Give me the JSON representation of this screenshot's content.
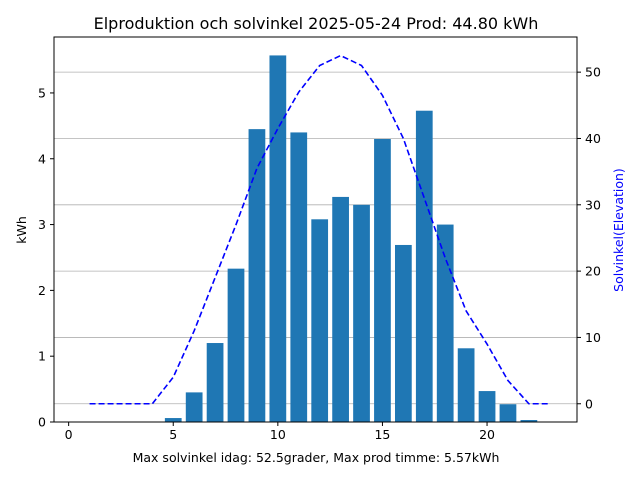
{
  "chart_data": {
    "type": "bar",
    "title": "Elproduktion och solvinkel 2025-05-24 Prod: 44.80 kWh",
    "xlabel": "Max solvinkel idag: 52.5grader, Max prod timme: 5.57kWh",
    "ylabel_left": "kWh",
    "ylabel_right": "Solvinkel(Elevation)",
    "xlim": [
      -0.7,
      24.3
    ],
    "ylim_left": [
      0,
      5.85
    ],
    "ylim_right": [
      -2.75,
      55.3
    ],
    "xticks": [
      0,
      5,
      10,
      15,
      20
    ],
    "yticks_left": [
      0,
      1,
      2,
      3,
      4,
      5
    ],
    "yticks_right": [
      0,
      10,
      20,
      30,
      40,
      50
    ],
    "grid": "horizontal lines at right-axis ticks",
    "colors": {
      "bars": "#1f77b4",
      "line": "#0000ff",
      "right_axis_label": "#0000ff"
    },
    "series": [
      {
        "kind": "bar",
        "axis": "left",
        "x": [
          1,
          2,
          3,
          4,
          5,
          6,
          7,
          8,
          9,
          10,
          11,
          12,
          13,
          14,
          15,
          16,
          17,
          18,
          19,
          20,
          21,
          22,
          23
        ],
        "values": [
          0,
          0,
          0,
          0,
          0.06,
          0.45,
          1.2,
          2.33,
          4.45,
          5.57,
          4.4,
          3.08,
          3.42,
          3.3,
          4.3,
          2.69,
          4.73,
          3.0,
          1.12,
          0.47,
          0.27,
          0.03,
          0
        ]
      },
      {
        "kind": "line",
        "style": "dashed",
        "axis": "right",
        "x": [
          1,
          2,
          3,
          4,
          5,
          6,
          7,
          8,
          9,
          10,
          11,
          12,
          13,
          14,
          15,
          16,
          17,
          18,
          19,
          20,
          21,
          22,
          23
        ],
        "values": [
          0,
          0,
          0,
          0,
          4,
          11,
          19,
          27,
          35.5,
          41.5,
          47,
          51,
          52.5,
          51,
          46.5,
          40,
          31,
          22,
          14,
          9,
          3.5,
          0,
          0
        ]
      }
    ]
  }
}
